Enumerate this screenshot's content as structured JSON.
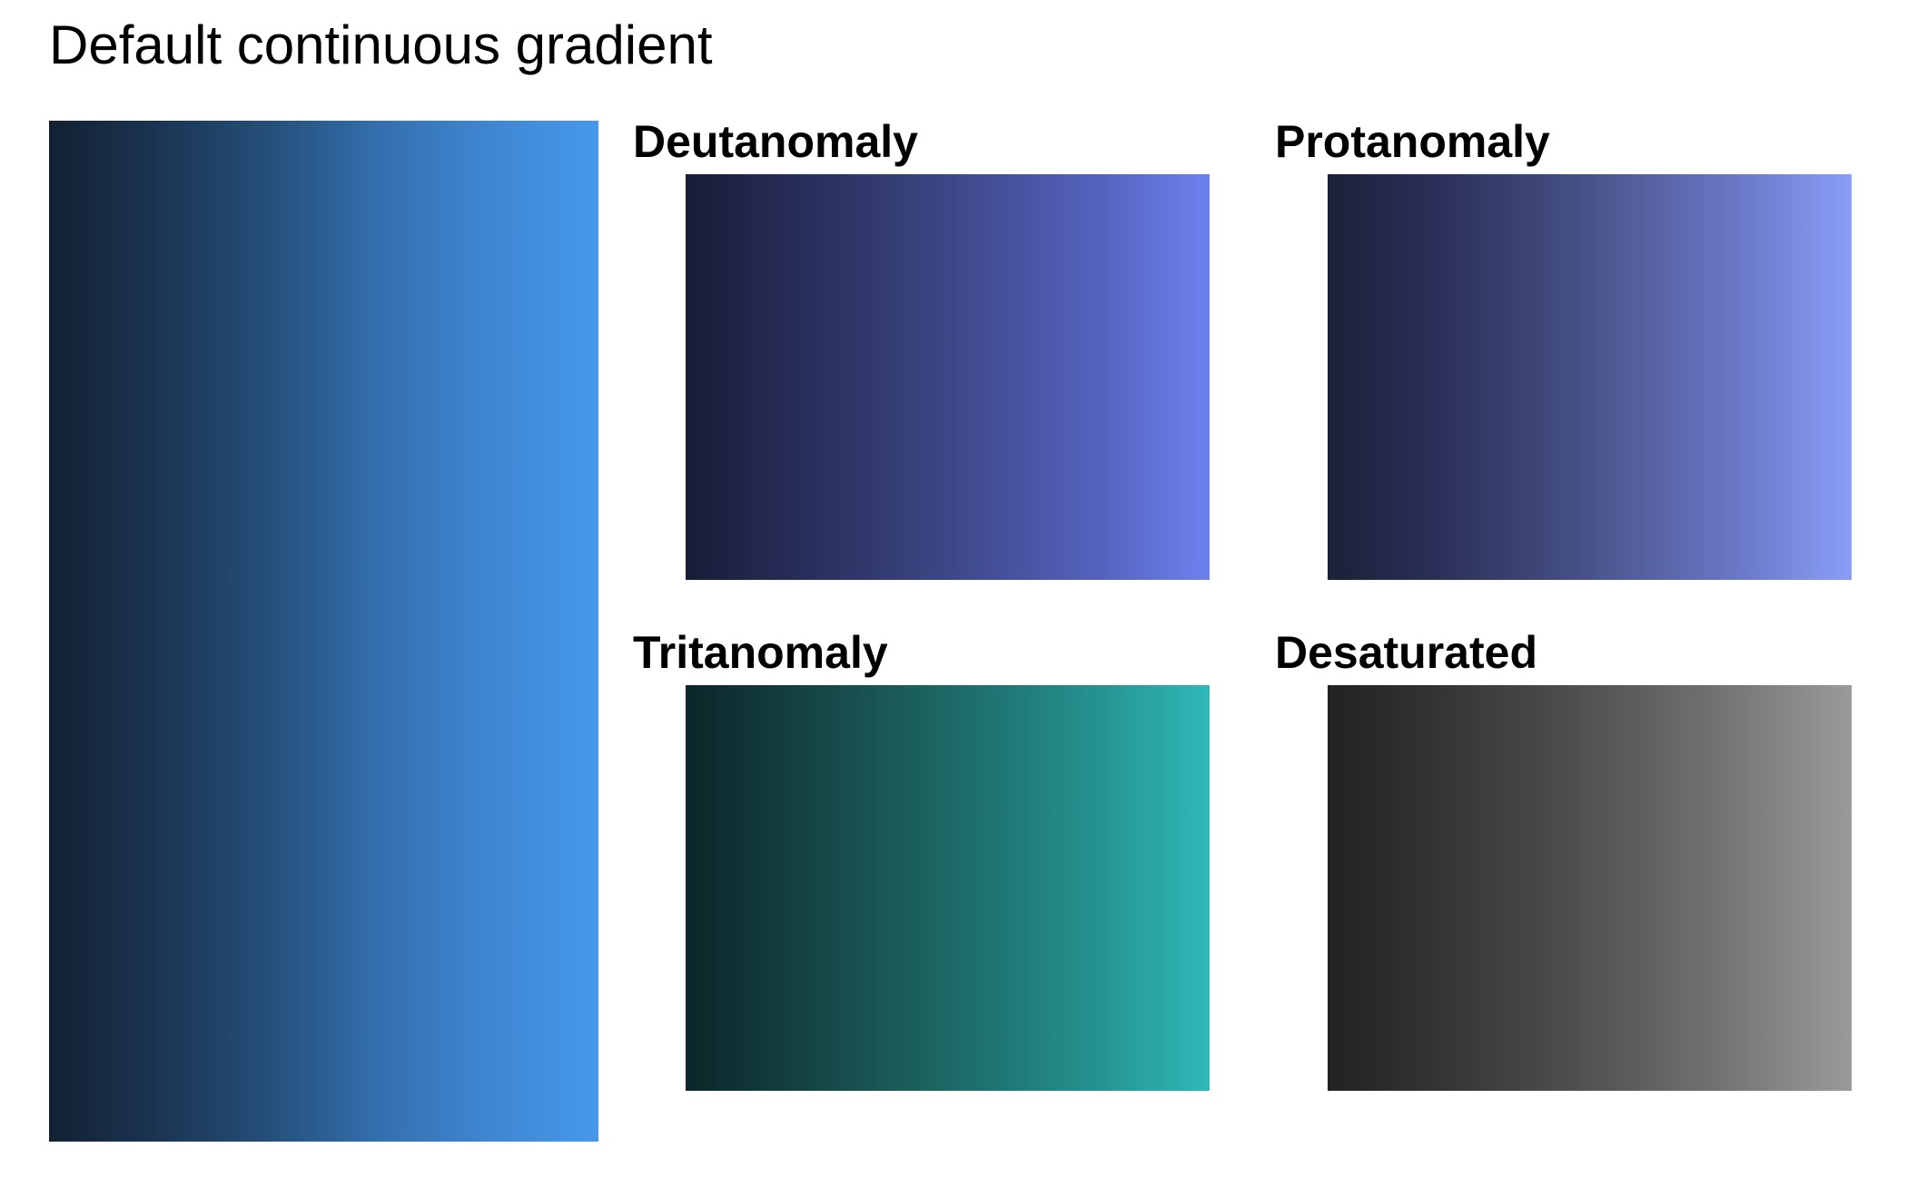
{
  "chart_data": {
    "type": "heatmap",
    "title": "Default continuous gradient",
    "main_gradient": {
      "colors": [
        "#132133",
        "#1b3552",
        "#254f7a",
        "#336fae",
        "#3f86d2",
        "#4599ec"
      ]
    },
    "panels": [
      {
        "label": "Deutanomaly",
        "colors": [
          "#181c36",
          "#262c57",
          "#353e74",
          "#45509a",
          "#5664c0",
          "#6d81ee"
        ]
      },
      {
        "label": "Protanomaly",
        "colors": [
          "#1c2038",
          "#2a2f57",
          "#3d4676",
          "#55609f",
          "#6c7bcb",
          "#8a9ef8"
        ]
      },
      {
        "label": "Tritanomaly",
        "colors": [
          "#0c2629",
          "#143f40",
          "#1a5a58",
          "#1f7674",
          "#269592",
          "#2fb9b8"
        ]
      },
      {
        "label": "Desaturated",
        "colors": [
          "#222222",
          "#333333",
          "#474747",
          "#5f5f5f",
          "#7a7a7a",
          "#9b9b9b"
        ]
      }
    ]
  }
}
